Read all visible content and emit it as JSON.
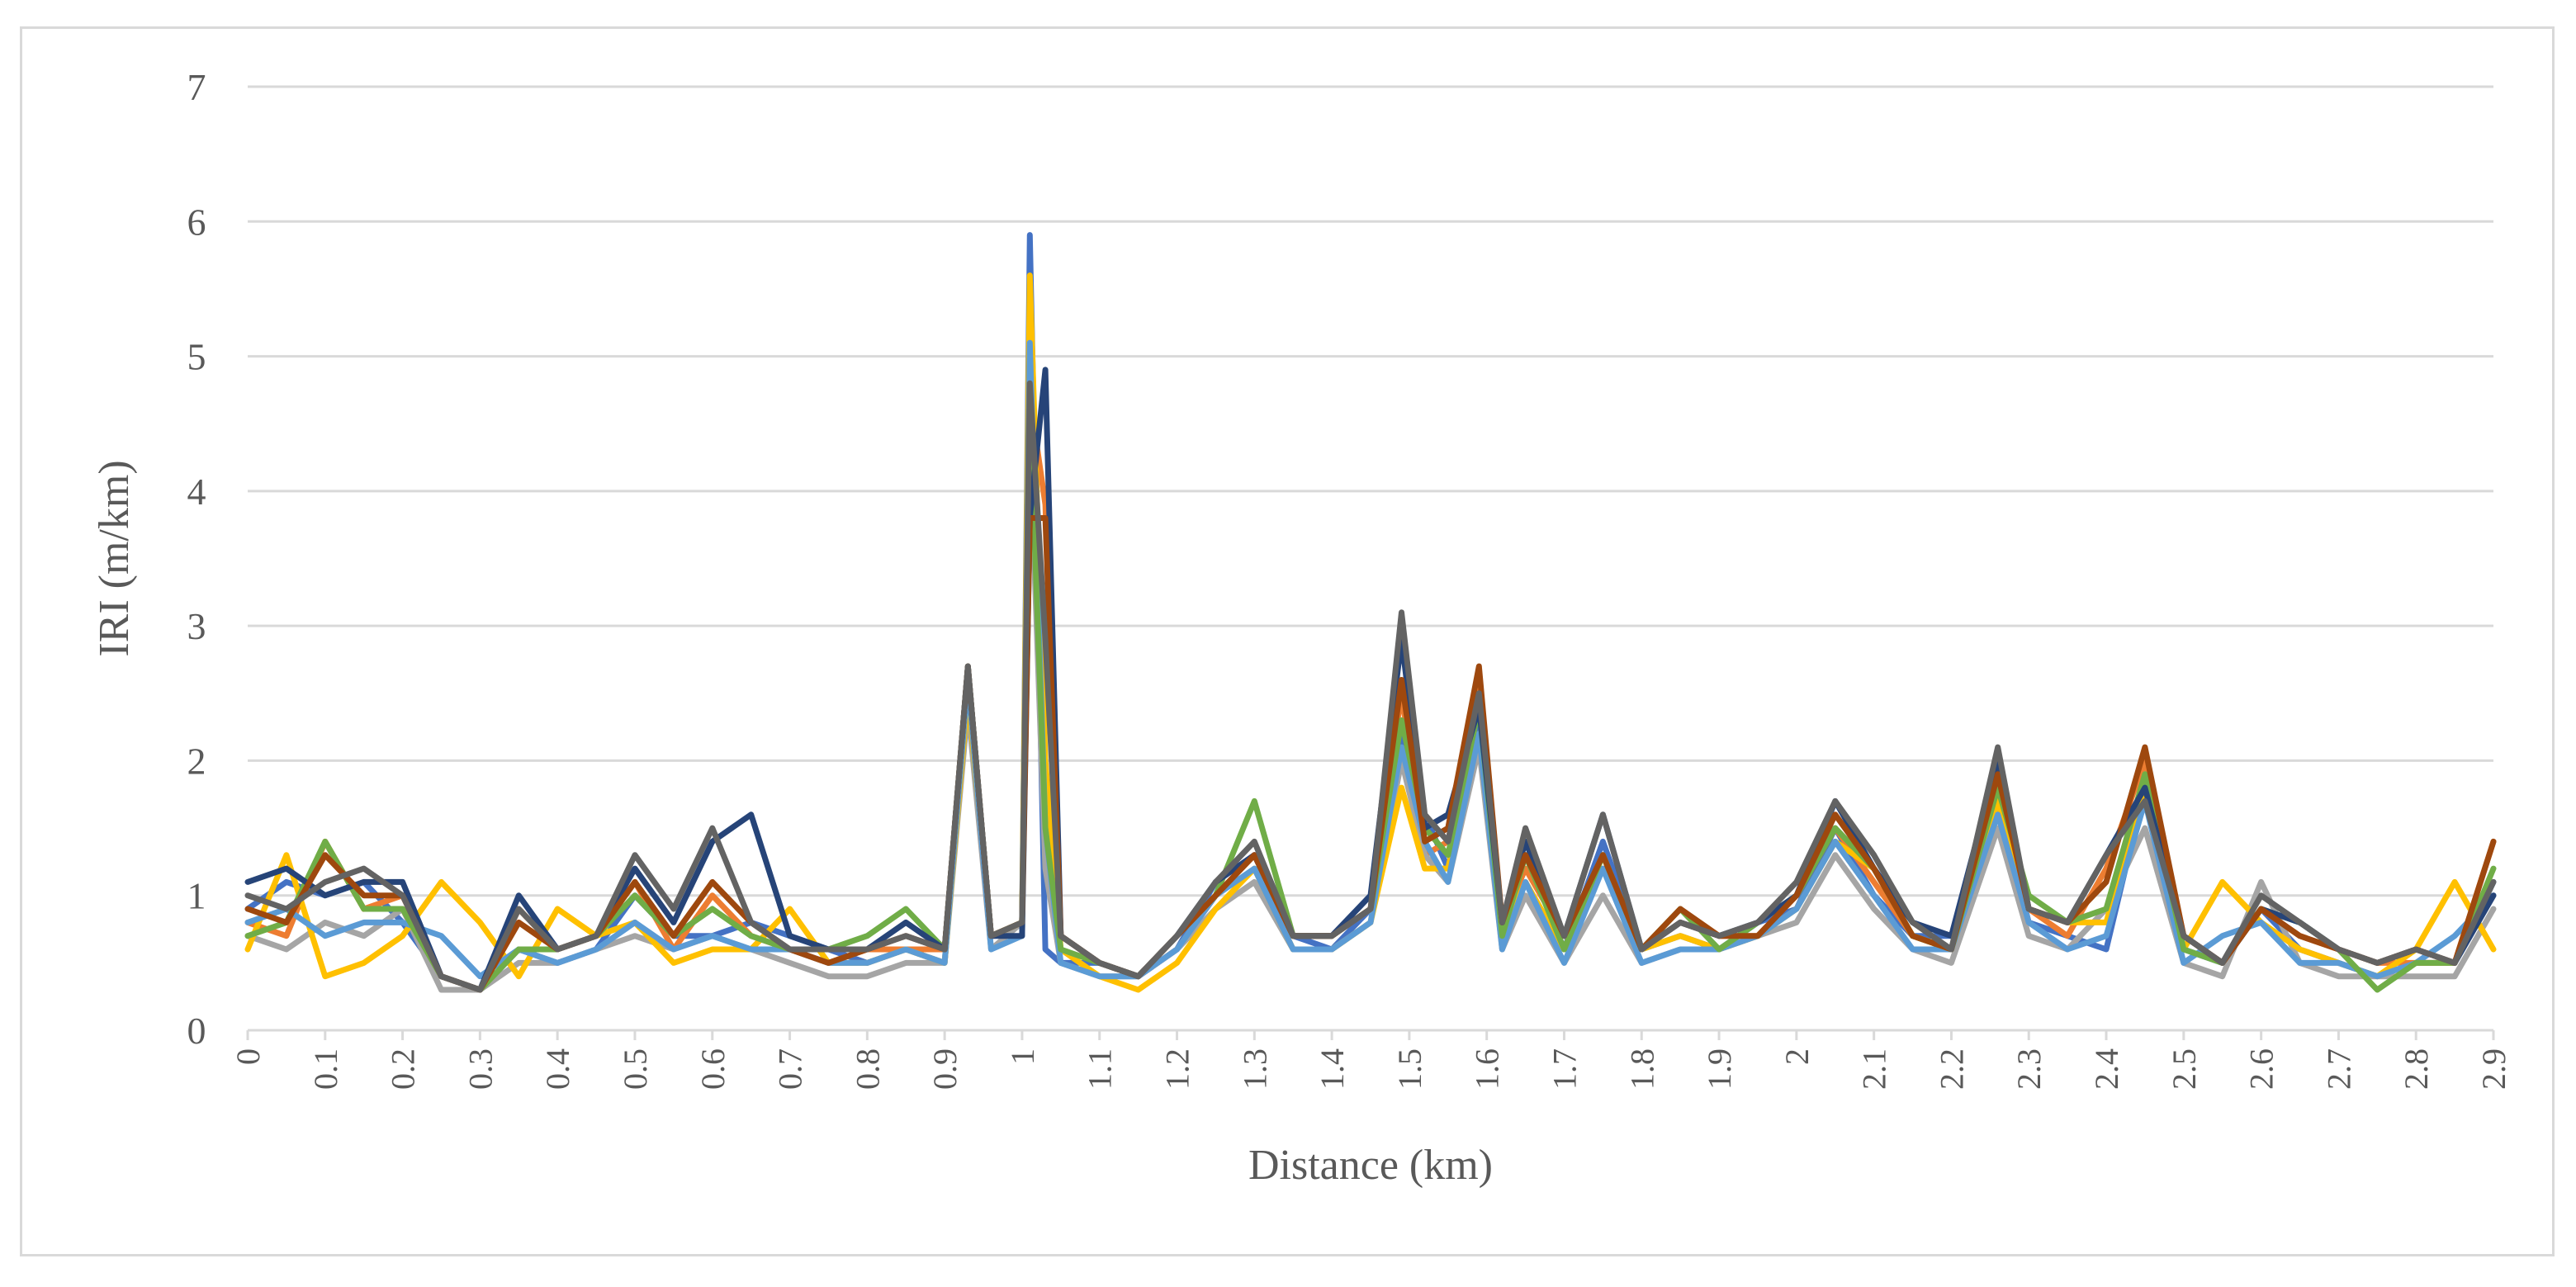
{
  "chart_data": {
    "type": "line",
    "xlabel": "Distance (km)",
    "ylabel": "IRI (m/km)",
    "xlim": [
      0,
      2.9
    ],
    "ylim": [
      0,
      7
    ],
    "y_ticks": [
      "0",
      "1",
      "2",
      "3",
      "4",
      "5",
      "6",
      "7"
    ],
    "x_ticks": [
      "0",
      "0.1",
      "0.2",
      "0.3",
      "0.4",
      "0.5",
      "0.6",
      "0.7",
      "0.8",
      "0.9",
      "1",
      "1.1",
      "1.2",
      "1.3",
      "1.4",
      "1.5",
      "1.6",
      "1.7",
      "1.8",
      "1.9",
      "2",
      "2.1",
      "2.2",
      "2.3",
      "2.4",
      "2.5",
      "2.6",
      "2.7",
      "2.8",
      "2.9"
    ],
    "grid": "horizontal",
    "legend": "none",
    "x": [
      0,
      0.05,
      0.1,
      0.15,
      0.2,
      0.25,
      0.3,
      0.35,
      0.4,
      0.45,
      0.5,
      0.55,
      0.6,
      0.65,
      0.7,
      0.75,
      0.8,
      0.85,
      0.9,
      0.93,
      0.96,
      1.0,
      1.01,
      1.03,
      1.05,
      1.1,
      1.15,
      1.2,
      1.25,
      1.3,
      1.35,
      1.4,
      1.45,
      1.49,
      1.52,
      1.55,
      1.59,
      1.62,
      1.65,
      1.7,
      1.75,
      1.8,
      1.85,
      1.9,
      1.95,
      2.0,
      2.05,
      2.1,
      2.15,
      2.2,
      2.26,
      2.3,
      2.35,
      2.4,
      2.45,
      2.5,
      2.55,
      2.6,
      2.65,
      2.7,
      2.75,
      2.8,
      2.85,
      2.9
    ],
    "series": [
      {
        "color": "#4472c4",
        "values": [
          0.9,
          1.1,
          1.0,
          1.1,
          0.8,
          0.4,
          0.3,
          0.6,
          0.5,
          0.6,
          1.0,
          0.7,
          0.7,
          0.8,
          0.7,
          0.6,
          0.5,
          0.6,
          0.5,
          2.7,
          0.7,
          0.8,
          5.9,
          0.6,
          0.5,
          0.5,
          0.4,
          0.6,
          1.1,
          1.3,
          0.7,
          0.6,
          0.9,
          2.2,
          1.6,
          1.2,
          2.3,
          0.7,
          1.3,
          0.6,
          1.4,
          0.6,
          0.7,
          0.6,
          0.8,
          0.9,
          1.5,
          1.0,
          0.7,
          0.7,
          1.7,
          0.8,
          0.7,
          0.6,
          1.8,
          0.6,
          0.5,
          0.9,
          0.6,
          0.5,
          0.4,
          0.5,
          0.5,
          1.1
        ]
      },
      {
        "color": "#ed7d31",
        "values": [
          0.8,
          0.7,
          1.4,
          0.9,
          1.0,
          0.4,
          0.3,
          0.9,
          0.6,
          0.7,
          1.1,
          0.6,
          1.0,
          0.7,
          0.6,
          0.5,
          0.6,
          0.6,
          0.6,
          2.6,
          0.7,
          0.8,
          4.7,
          3.9,
          0.7,
          0.5,
          0.4,
          0.6,
          1.0,
          1.3,
          0.7,
          0.7,
          0.9,
          2.5,
          1.3,
          1.4,
          2.6,
          0.8,
          1.2,
          0.7,
          1.2,
          0.6,
          0.8,
          0.7,
          0.7,
          1.0,
          1.5,
          1.1,
          0.7,
          0.6,
          1.8,
          0.9,
          0.7,
          1.2,
          2.0,
          0.7,
          0.5,
          0.9,
          0.7,
          0.6,
          0.5,
          0.5,
          0.5,
          1.4
        ]
      },
      {
        "color": "#a5a5a5",
        "values": [
          0.7,
          0.6,
          0.8,
          0.7,
          0.9,
          0.3,
          0.3,
          0.5,
          0.5,
          0.6,
          0.7,
          0.6,
          0.7,
          0.6,
          0.5,
          0.4,
          0.4,
          0.5,
          0.5,
          2.4,
          0.6,
          0.8,
          4.4,
          1.2,
          0.5,
          0.4,
          0.4,
          0.6,
          0.9,
          1.1,
          0.6,
          0.6,
          0.8,
          2.0,
          1.3,
          1.1,
          2.1,
          0.6,
          1.0,
          0.5,
          1.0,
          0.5,
          0.6,
          0.6,
          0.7,
          0.8,
          1.3,
          0.9,
          0.6,
          0.5,
          1.5,
          0.7,
          0.6,
          0.9,
          1.5,
          0.5,
          0.4,
          1.1,
          0.5,
          0.4,
          0.4,
          0.4,
          0.4,
          0.9
        ]
      },
      {
        "color": "#ffc000",
        "values": [
          0.6,
          1.3,
          0.4,
          0.5,
          0.7,
          1.1,
          0.8,
          0.4,
          0.9,
          0.7,
          0.8,
          0.5,
          0.6,
          0.6,
          0.9,
          0.5,
          0.5,
          0.6,
          0.5,
          2.5,
          0.7,
          0.8,
          5.6,
          2.0,
          0.6,
          0.4,
          0.3,
          0.5,
          0.9,
          1.2,
          0.6,
          0.6,
          0.8,
          1.8,
          1.2,
          1.2,
          2.2,
          0.7,
          1.1,
          0.6,
          1.3,
          0.6,
          0.7,
          0.6,
          0.7,
          0.9,
          1.4,
          1.2,
          0.7,
          0.6,
          1.7,
          0.9,
          0.8,
          0.8,
          1.8,
          0.6,
          1.1,
          0.8,
          0.6,
          0.5,
          0.4,
          0.6,
          1.1,
          0.6
        ]
      },
      {
        "color": "#5b9bd5",
        "values": [
          0.8,
          0.9,
          0.7,
          0.8,
          0.8,
          0.7,
          0.4,
          0.6,
          0.5,
          0.6,
          0.8,
          0.6,
          0.7,
          0.6,
          0.6,
          0.5,
          0.5,
          0.6,
          0.5,
          2.6,
          0.6,
          0.7,
          5.1,
          1.5,
          0.5,
          0.4,
          0.4,
          0.6,
          1.0,
          1.2,
          0.6,
          0.6,
          0.8,
          2.1,
          1.4,
          1.1,
          2.2,
          0.6,
          1.1,
          0.5,
          1.2,
          0.5,
          0.6,
          0.6,
          0.7,
          0.9,
          1.4,
          1.0,
          0.6,
          0.6,
          1.6,
          0.8,
          0.6,
          0.7,
          1.7,
          0.5,
          0.7,
          0.8,
          0.5,
          0.5,
          0.4,
          0.5,
          0.7,
          1.0
        ]
      },
      {
        "color": "#70ad47",
        "values": [
          0.7,
          0.8,
          1.4,
          0.9,
          0.9,
          0.4,
          0.3,
          0.6,
          0.6,
          0.7,
          1.0,
          0.7,
          0.9,
          0.7,
          0.6,
          0.6,
          0.7,
          0.9,
          0.6,
          2.7,
          0.7,
          0.8,
          4.6,
          1.5,
          0.6,
          0.5,
          0.4,
          0.7,
          1.0,
          1.7,
          0.7,
          0.7,
          0.9,
          2.3,
          1.5,
          1.3,
          2.4,
          0.7,
          1.3,
          0.6,
          1.3,
          0.6,
          0.9,
          0.6,
          0.8,
          1.0,
          1.5,
          1.2,
          0.7,
          0.6,
          1.8,
          1.0,
          0.8,
          0.9,
          1.9,
          0.6,
          0.5,
          0.9,
          0.8,
          0.6,
          0.3,
          0.5,
          0.5,
          1.2
        ]
      },
      {
        "color": "#264478",
        "values": [
          1.1,
          1.2,
          1.0,
          1.1,
          1.1,
          0.4,
          0.3,
          1.0,
          0.6,
          0.7,
          1.2,
          0.8,
          1.4,
          1.6,
          0.7,
          0.6,
          0.6,
          0.8,
          0.6,
          2.7,
          0.7,
          0.7,
          3.8,
          4.9,
          0.7,
          0.5,
          0.4,
          0.7,
          1.1,
          1.3,
          0.7,
          0.7,
          1.0,
          2.9,
          1.5,
          1.6,
          2.4,
          0.8,
          1.4,
          0.7,
          1.6,
          0.6,
          0.8,
          0.7,
          0.8,
          1.0,
          1.7,
          1.2,
          0.8,
          0.7,
          2.0,
          0.9,
          0.8,
          1.3,
          1.8,
          0.7,
          0.5,
          0.9,
          0.8,
          0.6,
          0.5,
          0.6,
          0.5,
          1.0
        ]
      },
      {
        "color": "#9e480e",
        "values": [
          0.9,
          0.8,
          1.3,
          1.0,
          1.0,
          0.4,
          0.3,
          0.8,
          0.6,
          0.7,
          1.1,
          0.7,
          1.1,
          0.8,
          0.6,
          0.5,
          0.6,
          0.7,
          0.6,
          2.7,
          0.7,
          0.8,
          3.8,
          3.8,
          0.7,
          0.5,
          0.4,
          0.7,
          1.0,
          1.3,
          0.7,
          0.7,
          0.9,
          2.6,
          1.4,
          1.5,
          2.7,
          0.8,
          1.3,
          0.7,
          1.3,
          0.6,
          0.9,
          0.7,
          0.7,
          1.0,
          1.6,
          1.2,
          0.7,
          0.6,
          1.9,
          0.9,
          0.8,
          1.1,
          2.1,
          0.7,
          0.5,
          0.9,
          0.7,
          0.6,
          0.5,
          0.6,
          0.5,
          1.4
        ]
      },
      {
        "color": "#636363",
        "values": [
          1.0,
          0.9,
          1.1,
          1.2,
          1.0,
          0.4,
          0.3,
          0.9,
          0.6,
          0.7,
          1.3,
          0.9,
          1.5,
          0.8,
          0.6,
          0.6,
          0.6,
          0.7,
          0.6,
          2.7,
          0.7,
          0.8,
          4.8,
          2.9,
          0.7,
          0.5,
          0.4,
          0.7,
          1.1,
          1.4,
          0.7,
          0.7,
          0.9,
          3.1,
          1.6,
          1.4,
          2.5,
          0.8,
          1.5,
          0.7,
          1.6,
          0.6,
          0.8,
          0.7,
          0.8,
          1.1,
          1.7,
          1.3,
          0.8,
          0.6,
          2.1,
          0.9,
          0.8,
          1.3,
          1.7,
          0.7,
          0.5,
          1.0,
          0.8,
          0.6,
          0.5,
          0.6,
          0.5,
          1.1
        ]
      }
    ]
  }
}
